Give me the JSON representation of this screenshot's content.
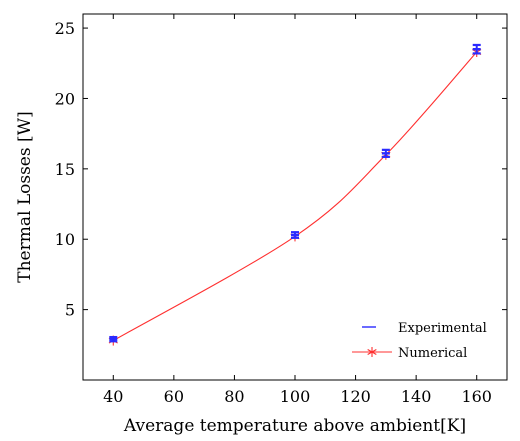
{
  "chart_data": {
    "type": "line",
    "xlabel": "Average temperature above ambient",
    "xlabel_unit": "[K]",
    "ylabel": "Thermal Losses",
    "ylabel_unit": "[W]",
    "xlim": [
      30,
      170
    ],
    "ylim": [
      0,
      26
    ],
    "x_ticks": [
      40,
      60,
      80,
      100,
      120,
      140,
      160
    ],
    "y_ticks": [
      5,
      10,
      15,
      20,
      25
    ],
    "grid": false,
    "legend_position": "bottom-right",
    "series": [
      {
        "name": "Experimental",
        "marker": "dash",
        "color": "#2a2aff",
        "x": [
          40,
          100,
          130,
          160
        ],
        "y": [
          2.9,
          10.3,
          16.1,
          23.5
        ],
        "error": [
          0.15,
          0.2,
          0.25,
          0.3
        ]
      },
      {
        "name": "Numerical",
        "marker": "star",
        "color": "#ff3030",
        "x": [
          40,
          100,
          130,
          160
        ],
        "y": [
          2.8,
          10.2,
          16.0,
          23.3
        ]
      }
    ]
  }
}
